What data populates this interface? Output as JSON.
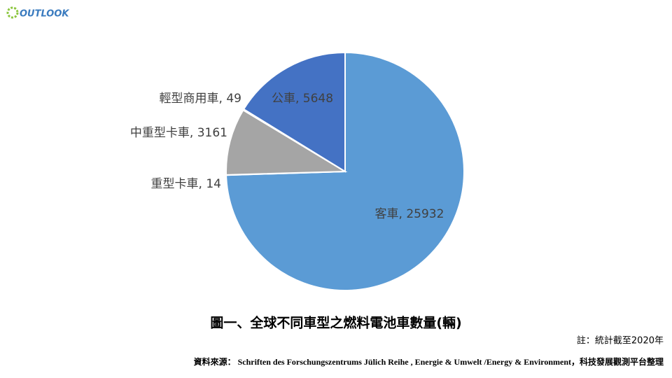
{
  "logo": {
    "text": "OUTLOOK"
  },
  "chart_data": {
    "type": "pie",
    "title": "圖一、全球不同車型之燃料電池車數量(輛)",
    "note": "註：統計截至2020年",
    "source": "資料來源： Schriften des Forschungszentrums Jülich Reihe , Energie & Umwelt /Energy & Environment，科技發展觀測平台整理",
    "categories": [
      "客車",
      "重型卡車",
      "中重型卡車",
      "輕型商用車",
      "公車"
    ],
    "values": [
      25932,
      14,
      3161,
      49,
      5648
    ],
    "value_labels": [
      "客車, 25932",
      "重型卡車, 14",
      "中重型卡車, 3161",
      "輕型商用車, 49",
      "公車, 5648"
    ],
    "colors": [
      "#5b9bd5",
      "#ed7d31",
      "#a5a5a5",
      "#ffc000",
      "#4472c4"
    ]
  }
}
